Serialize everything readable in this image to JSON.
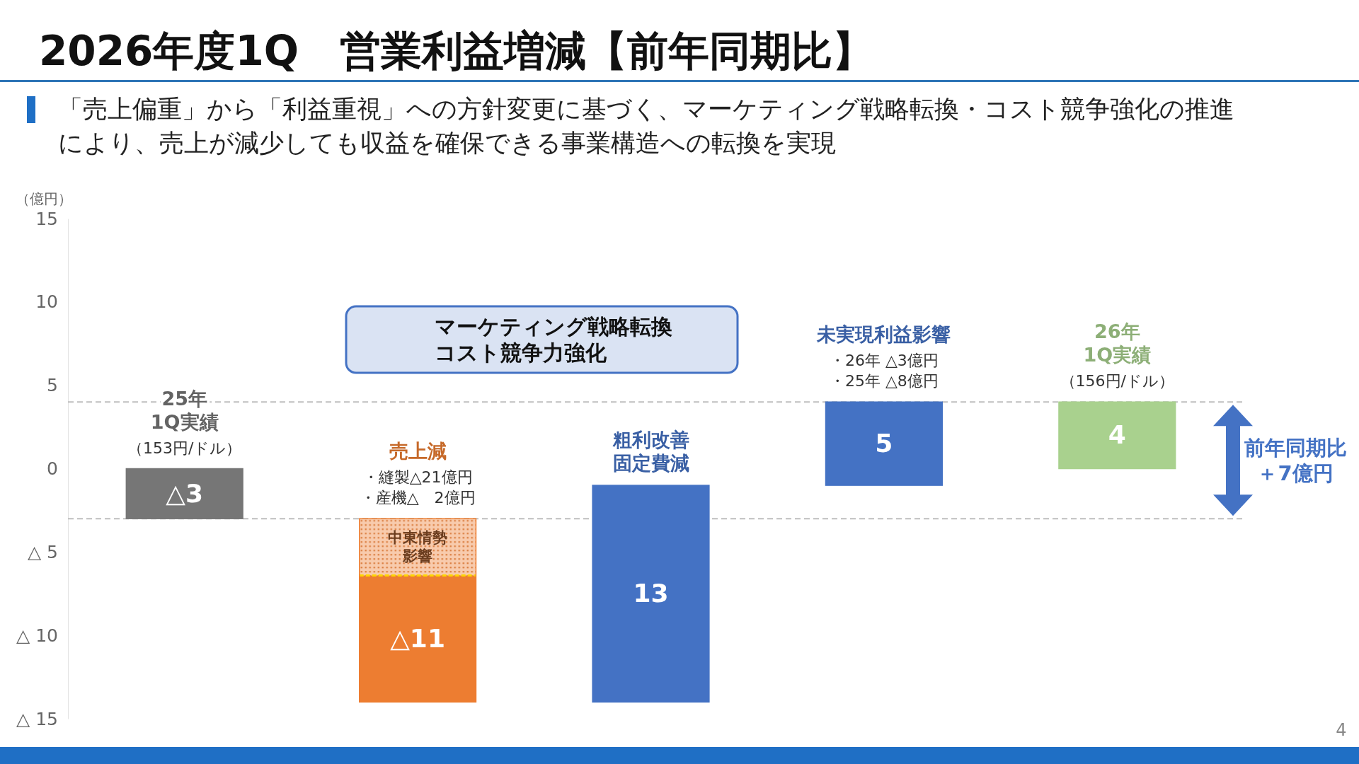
{
  "chart_data": {
    "type": "bar",
    "title": "2026年度1Q　営業利益増減【前年同期比】",
    "subtitle": "「売上偏重」から「利益重視」への方針変更に基づく、マーケティング戦略転換・コスト競争強化の推進により、売上が減少しても収益を確保できる事業構造への転換を実現",
    "ylabel": "（億円）",
    "categories": [
      "25年1Q実績",
      "売上減",
      "粗利改善固定費減",
      "未実現利益影響",
      "26年1Q実績"
    ],
    "values": [
      -3,
      -11,
      13,
      5,
      4
    ],
    "base": [
      0,
      -3,
      -14,
      -1,
      0
    ],
    "colors": [
      "#767676",
      "#ed7d31",
      "#4472c4",
      "#4472c4",
      "#a9d18e"
    ],
    "value_labels": [
      "△3",
      "△11",
      "13",
      "5",
      "4"
    ],
    "ylim": [
      -15,
      15
    ],
    "yticks": [
      {
        "value": -15,
        "label": "△ 15"
      },
      {
        "value": -10,
        "label": "△ 10"
      },
      {
        "value": -5,
        "label": "△ 5"
      },
      0,
      5,
      10,
      15
    ],
    "grid": false,
    "ref_lines": [
      {
        "axis": "y",
        "value": 4,
        "color": "#bfbfbf",
        "line_style": "dashed"
      },
      {
        "axis": "y",
        "value": -3,
        "color": "#bfbfbf",
        "line_style": "dashed"
      }
    ],
    "annotations": [
      "（153円/ドル）",
      "・縫製△21億円・産機△　2億円",
      "中東情勢影響",
      "・26年 △3億円・25年 △8億円",
      "（156円/ドル）",
      "マーケティング戦略転換コスト競争力強化",
      "前年同期比＋7億円",
      "4"
    ]
  }
}
